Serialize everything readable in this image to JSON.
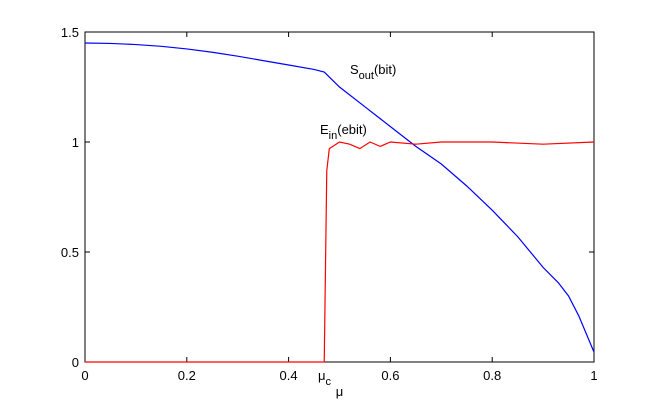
{
  "chart_data": {
    "type": "line",
    "xlabel": "μ",
    "xlim": [
      0,
      1
    ],
    "ylim": [
      0,
      1.5
    ],
    "xticks": [
      0,
      0.2,
      0.4,
      0.6,
      0.8,
      1
    ],
    "yticks": [
      0,
      0.5,
      1,
      1.5
    ],
    "grid": false,
    "annotations": [
      {
        "text": "S",
        "sub": "out",
        "suffix": "(bit)"
      },
      {
        "text": "E",
        "sub": "in",
        "suffix": "(ebit)"
      },
      {
        "text": "μ",
        "sub": "c"
      }
    ],
    "series": [
      {
        "color": "#0000ff",
        "x": [
          0,
          0.05,
          0.1,
          0.15,
          0.2,
          0.25,
          0.3,
          0.35,
          0.4,
          0.45,
          0.47,
          0.5,
          0.55,
          0.6,
          0.65,
          0.7,
          0.75,
          0.8,
          0.85,
          0.9,
          0.93,
          0.95,
          0.97,
          0.99,
          1.0
        ],
        "values": [
          1.45,
          1.448,
          1.443,
          1.435,
          1.423,
          1.408,
          1.39,
          1.37,
          1.35,
          1.33,
          1.318,
          1.25,
          1.16,
          1.07,
          0.98,
          0.9,
          0.8,
          0.69,
          0.57,
          0.43,
          0.36,
          0.3,
          0.21,
          0.1,
          0.045
        ]
      },
      {
        "color": "#ff0000",
        "x": [
          0,
          0.1,
          0.2,
          0.3,
          0.4,
          0.46,
          0.47,
          0.475,
          0.48,
          0.5,
          0.52,
          0.54,
          0.56,
          0.58,
          0.6,
          0.65,
          0.7,
          0.8,
          0.9,
          1.0
        ],
        "values": [
          0,
          0,
          0,
          0,
          0,
          0,
          0,
          0.87,
          0.97,
          1.0,
          0.99,
          0.97,
          1.0,
          0.98,
          1.0,
          0.99,
          1.0,
          1.0,
          0.99,
          1.0
        ]
      }
    ]
  }
}
